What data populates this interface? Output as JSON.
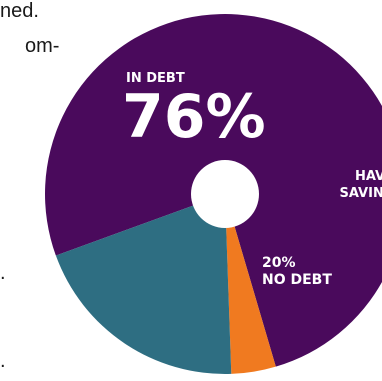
{
  "side_text": {
    "line1": "ned.",
    "line2": "om-",
    "line3": ".",
    "line4": "."
  },
  "colors": {
    "in_debt": "#4a0a5c",
    "have_savings": "#f07a20",
    "no_debt": "#2e6e82",
    "labels": "#ffffff"
  },
  "chart_data": {
    "type": "pie",
    "categories": [
      "IN DEBT",
      "HAVE SAVINGS",
      "NO DEBT"
    ],
    "values": [
      76,
      4,
      20
    ],
    "labels": {
      "in_debt_title": "IN DEBT",
      "in_debt_value": "76%",
      "have_savings_line1": "HAV",
      "have_savings_line2": "SAVING",
      "no_debt_value": "20%",
      "no_debt_title": "NO DEBT"
    },
    "center_hole": true
  }
}
